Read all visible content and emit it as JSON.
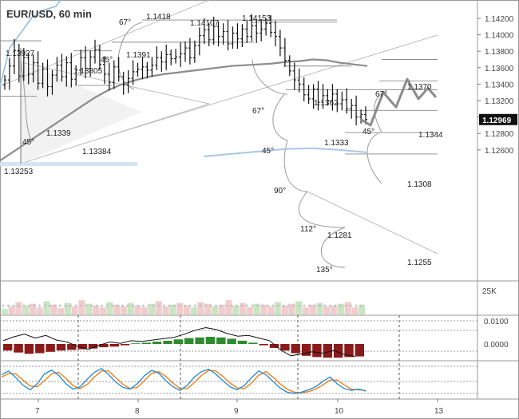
{
  "chart_data": {
    "type": "candlestick",
    "title": "EUR/USD, 60 min",
    "price_axis": {
      "range": [
        1.1248,
        1.1429
      ],
      "ticks": [
        "1.14200",
        "1.14000",
        "1.13800",
        "1.13600",
        "1.13400",
        "1.13200",
        "1.13000",
        "1.12800",
        "1.12600"
      ],
      "current_price": "1.12969"
    },
    "time_axis": {
      "ticks": [
        "7",
        "8",
        "9",
        "10",
        "13"
      ]
    },
    "price_series": {
      "name": "EUR/USD",
      "close": [
        1.1345,
        1.1362,
        1.1381,
        1.135,
        1.1372,
        1.1352,
        1.1366,
        1.1341,
        1.1358,
        1.1337,
        1.1351,
        1.1363,
        1.1349,
        1.1366,
        1.1346,
        1.1357,
        1.1372,
        1.1359,
        1.1373,
        1.1382,
        1.1364,
        1.1352,
        1.1342,
        1.1361,
        1.1349,
        1.1339,
        1.1347,
        1.1355,
        1.1358,
        1.1361,
        1.1357,
        1.1363,
        1.1372,
        1.1367,
        1.1376,
        1.1371,
        1.1373,
        1.1377,
        1.1384,
        1.1372,
        1.1387,
        1.1399,
        1.1406,
        1.1394,
        1.141,
        1.1398,
        1.1404,
        1.1389,
        1.1402,
        1.1395,
        1.1407,
        1.1398,
        1.1411,
        1.1402,
        1.1407,
        1.1414,
        1.1403,
        1.1398,
        1.1384,
        1.1369,
        1.1356,
        1.1345,
        1.134,
        1.1327,
        1.1322,
        1.1334,
        1.1318,
        1.1326,
        1.132,
        1.1328,
        1.1316,
        1.1321,
        1.131,
        1.1314,
        1.13,
        1.1303,
        1.1297
      ]
    },
    "moving_averages": [
      {
        "color": "#8c8c8c",
        "values": [
          1.1247,
          1.1258,
          1.1269,
          1.128,
          1.1291,
          1.1302,
          1.1313,
          1.1324,
          1.1333,
          1.134,
          1.1345,
          1.1349,
          1.1352,
          1.1354,
          1.1356,
          1.1358,
          1.136,
          1.1362,
          1.1363,
          1.1364,
          1.1365,
          1.1367,
          1.1368,
          1.137,
          1.1369,
          1.1366,
          1.1364,
          1.1362
        ]
      },
      {
        "color": "#a8c8e8",
        "values": [
          1.1252,
          1.1255,
          1.1258,
          1.1261,
          1.1262,
          1.126,
          1.1257
        ]
      }
    ],
    "levels": [
      {
        "label": "1.1418",
        "value": 1.1418
      },
      {
        "label": "1.14107",
        "value": 1.14107
      },
      {
        "label": "1.14153",
        "value": 1.14153
      },
      {
        "label": "1.13927",
        "value": 1.13927
      },
      {
        "label": "1.13805",
        "value": 1.13805
      },
      {
        "label": "1.1391",
        "value": 1.1391
      },
      {
        "label": "1.1339",
        "value": 1.1339
      },
      {
        "label": "1.13384",
        "value": 1.13384
      },
      {
        "label": "1.13253",
        "value": 1.13253
      },
      {
        "label": "1.1370",
        "value": 1.137
      },
      {
        "label": "1.1362",
        "value": 1.1362
      },
      {
        "label": "1.1344",
        "value": 1.1344
      },
      {
        "label": "1.1333",
        "value": 1.1333
      },
      {
        "label": "1.1308",
        "value": 1.1308
      },
      {
        "label": "1.1281",
        "value": 1.1281
      },
      {
        "label": "1.1255",
        "value": 1.1255
      }
    ],
    "angle_labels": [
      "67°",
      "45°",
      "45°",
      "67°",
      "45°",
      "67°",
      "45°",
      "90°",
      "112°",
      "135°"
    ],
    "projection": {
      "color": "#8c8c8c",
      "values": [
        1.1297,
        1.129,
        1.133,
        1.1312,
        1.1346,
        1.1322,
        1.1335,
        1.1324
      ]
    },
    "volume": {
      "label": "25K",
      "values": [
        6,
        9,
        14,
        10,
        12,
        8,
        15,
        11,
        7,
        13,
        9,
        16,
        12,
        10,
        8,
        14,
        11,
        9,
        13,
        10,
        8,
        12,
        15,
        9,
        11,
        13,
        10,
        8,
        14,
        12,
        9,
        11,
        16,
        10,
        13,
        8,
        12,
        11,
        9,
        14,
        10,
        12,
        15,
        8,
        11,
        13,
        9,
        10,
        12,
        14,
        8,
        11
      ]
    },
    "macd": {
      "ticks": [
        "0.0100",
        "0.0000"
      ],
      "histogram": [
        -0.002,
        -0.0026,
        -0.003,
        -0.0028,
        -0.0024,
        -0.002,
        -0.0018,
        -0.0016,
        -0.0014,
        -0.001,
        -0.0008,
        -0.0004,
        0.0002,
        0.0004,
        0.0007,
        0.001,
        0.0014,
        0.0018,
        0.002,
        0.0022,
        0.002,
        0.0016,
        0.001,
        0.0004,
        -0.0004,
        -0.0012,
        -0.002,
        -0.0028,
        -0.0036,
        -0.004,
        -0.0042,
        -0.0042,
        -0.004,
        -0.0038
      ],
      "line": [
        0.001,
        0.0022,
        0.003,
        0.0018,
        0.0026,
        0.0012,
        0.0006,
        -0.0008,
        -0.0016,
        -0.0004,
        0.0006,
        0.0002,
        0.001,
        0.0008,
        0.0012,
        0.0016,
        0.002,
        0.003,
        0.0042,
        0.005,
        0.0044,
        0.0032,
        0.0024,
        0.0026,
        0.0018,
        0.001,
        -0.0018,
        -0.0036,
        -0.003,
        -0.0024,
        -0.0028,
        -0.002,
        -0.0032,
        -0.0038
      ]
    },
    "stochastic": {
      "k": [
        70,
        82,
        60,
        35,
        20,
        40,
        72,
        85,
        68,
        40,
        22,
        30,
        55,
        78,
        90,
        70,
        45,
        28,
        22,
        40,
        66,
        84,
        75,
        50,
        30,
        18,
        35,
        62,
        80,
        88,
        72,
        50,
        30,
        20,
        34,
        60,
        82,
        70,
        48,
        26,
        12,
        8,
        12,
        20,
        30,
        48,
        62,
        40,
        24,
        18,
        22,
        16
      ],
      "d": [
        62,
        74,
        72,
        52,
        32,
        30,
        50,
        72,
        78,
        58,
        34,
        24,
        38,
        62,
        82,
        82,
        60,
        38,
        24,
        28,
        50,
        74,
        80,
        64,
        42,
        24,
        24,
        44,
        68,
        84,
        82,
        64,
        42,
        26,
        24,
        42,
        68,
        80,
        62,
        40,
        22,
        12,
        10,
        14,
        22,
        36,
        52,
        52,
        36,
        22,
        20,
        18
      ]
    }
  }
}
